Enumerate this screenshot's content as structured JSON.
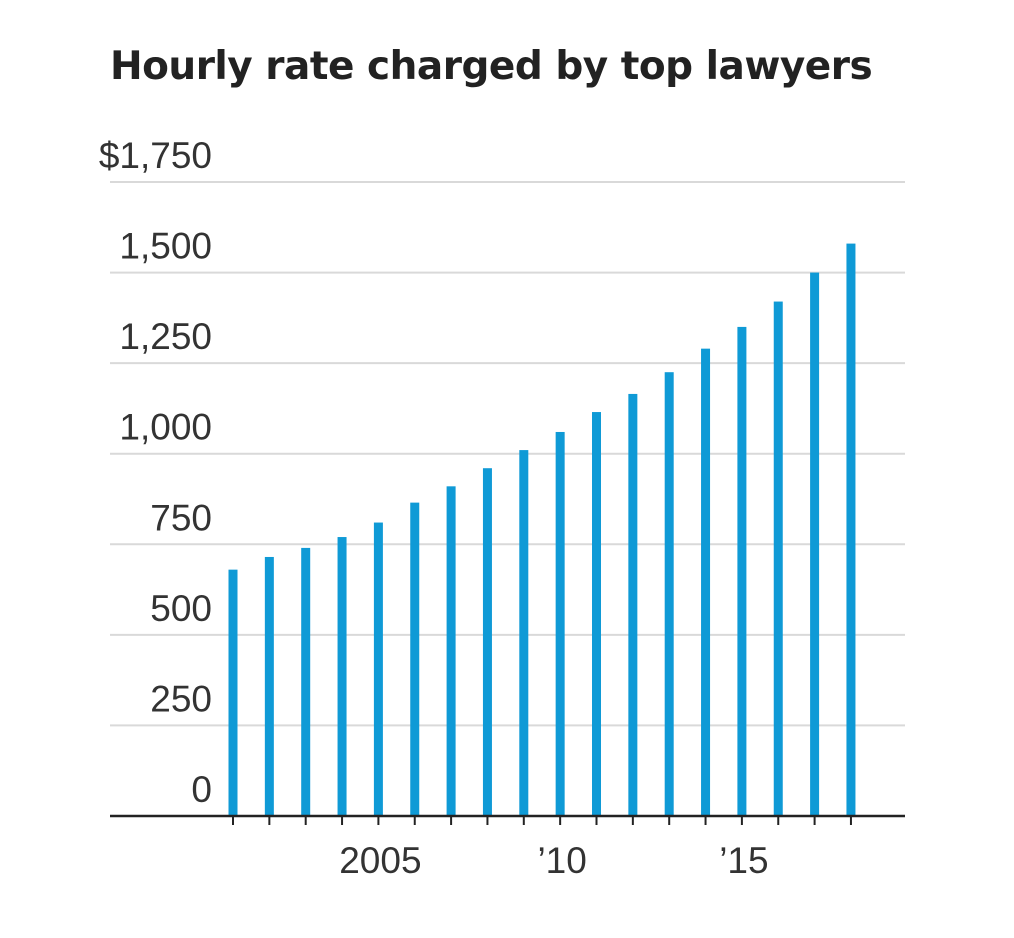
{
  "chart_data": {
    "type": "bar",
    "title": "Hourly rate charged by top lawyers",
    "xlabel": "",
    "ylabel": "",
    "x": [
      2001,
      2002,
      2003,
      2004,
      2005,
      2006,
      2007,
      2008,
      2009,
      2010,
      2011,
      2012,
      2013,
      2014,
      2015,
      2016,
      2017,
      2018
    ],
    "values": [
      680,
      715,
      740,
      770,
      810,
      865,
      910,
      960,
      1010,
      1060,
      1115,
      1165,
      1225,
      1290,
      1350,
      1420,
      1500,
      1580
    ],
    "ylim": [
      0,
      1750
    ],
    "y_ticks": [
      0,
      250,
      500,
      750,
      1000,
      1250,
      1500,
      1750
    ],
    "y_tick_labels": [
      "0",
      "250",
      "500",
      "750",
      "1,000",
      "1,250",
      "1,500",
      "$1,750"
    ],
    "x_tick_labels": [
      {
        "x": 2005,
        "label": "2005"
      },
      {
        "x": 2010,
        "label": "’10"
      },
      {
        "x": 2015,
        "label": "’15"
      }
    ],
    "bar_color": "#0f9ad6",
    "grid": true,
    "legend": false
  }
}
